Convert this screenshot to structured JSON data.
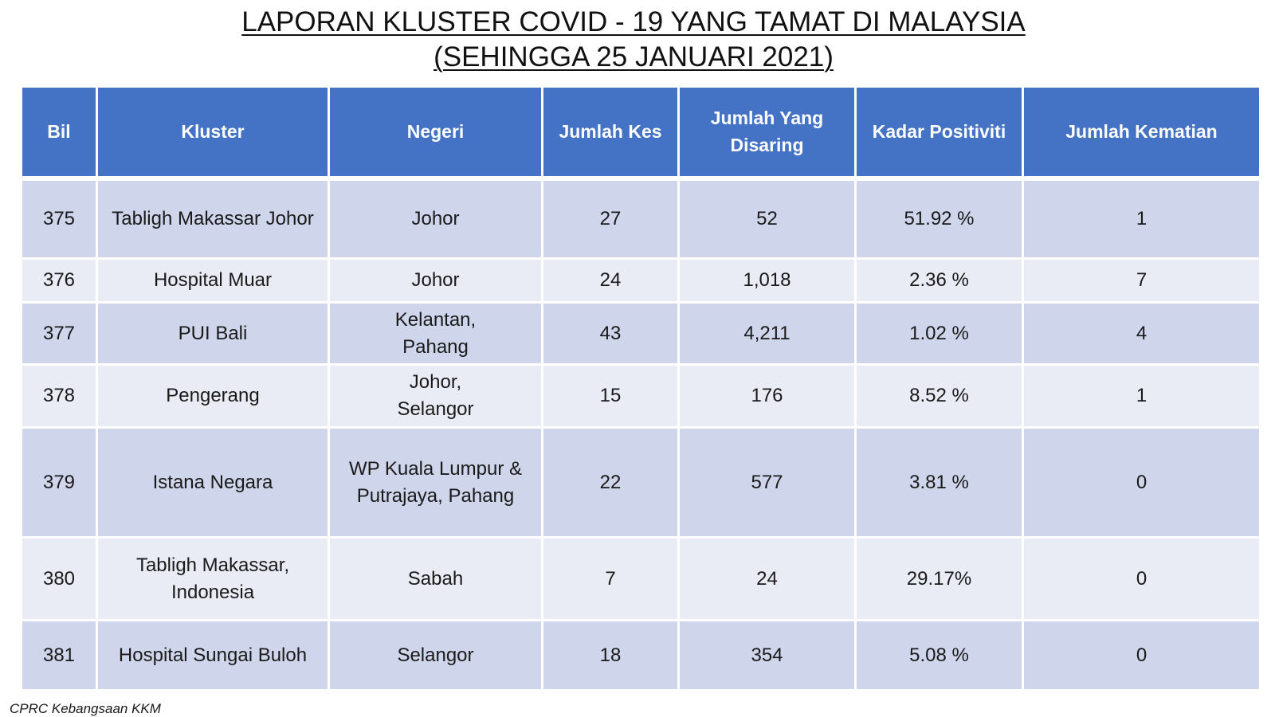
{
  "title": {
    "line1": "LAPORAN KLUSTER COVID - 19 YANG TAMAT DI MALAYSIA",
    "line2": "(SEHINGGA 25 JANUARI 2021)"
  },
  "table": {
    "headers": {
      "bil": "Bil",
      "kluster": "Kluster",
      "negeri": "Negeri",
      "jumlah_kes": "Jumlah Kes",
      "jumlah_disaring": "Jumlah Yang Disaring",
      "kadar_positiviti": "Kadar Positiviti",
      "jumlah_kematian": "Jumlah Kematian"
    },
    "rows": [
      {
        "bil": "375",
        "kluster": "Tabligh Makassar Johor",
        "negeri": "Johor",
        "jumlah_kes": "27",
        "jumlah_disaring": "52",
        "kadar_positiviti": "51.92 %",
        "jumlah_kematian": "1"
      },
      {
        "bil": "376",
        "kluster": "Hospital Muar",
        "negeri": "Johor",
        "jumlah_kes": "24",
        "jumlah_disaring": "1,018",
        "kadar_positiviti": "2.36 %",
        "jumlah_kematian": "7"
      },
      {
        "bil": "377",
        "kluster": "PUI Bali",
        "negeri": "Kelantan, Pahang",
        "jumlah_kes": "43",
        "jumlah_disaring": "4,211",
        "kadar_positiviti": "1.02 %",
        "jumlah_kematian": "4"
      },
      {
        "bil": "378",
        "kluster": "Pengerang",
        "negeri": "Johor, Selangor",
        "jumlah_kes": "15",
        "jumlah_disaring": "176",
        "kadar_positiviti": "8.52 %",
        "jumlah_kematian": "1"
      },
      {
        "bil": "379",
        "kluster": "Istana Negara",
        "negeri": "WP Kuala Lumpur & Putrajaya, Pahang",
        "jumlah_kes": "22",
        "jumlah_disaring": "577",
        "kadar_positiviti": "3.81 %",
        "jumlah_kematian": "0"
      },
      {
        "bil": "380",
        "kluster": "Tabligh Makassar, Indonesia",
        "negeri": "Sabah",
        "jumlah_kes": "7",
        "jumlah_disaring": "24",
        "kadar_positiviti": "29.17%",
        "jumlah_kematian": "0"
      },
      {
        "bil": "381",
        "kluster": "Hospital Sungai Buloh",
        "negeri": "Selangor",
        "jumlah_kes": "18",
        "jumlah_disaring": "354",
        "kadar_positiviti": "5.08 %",
        "jumlah_kematian": "0"
      }
    ]
  },
  "footnote": "CPRC Kebangsaan KKM"
}
